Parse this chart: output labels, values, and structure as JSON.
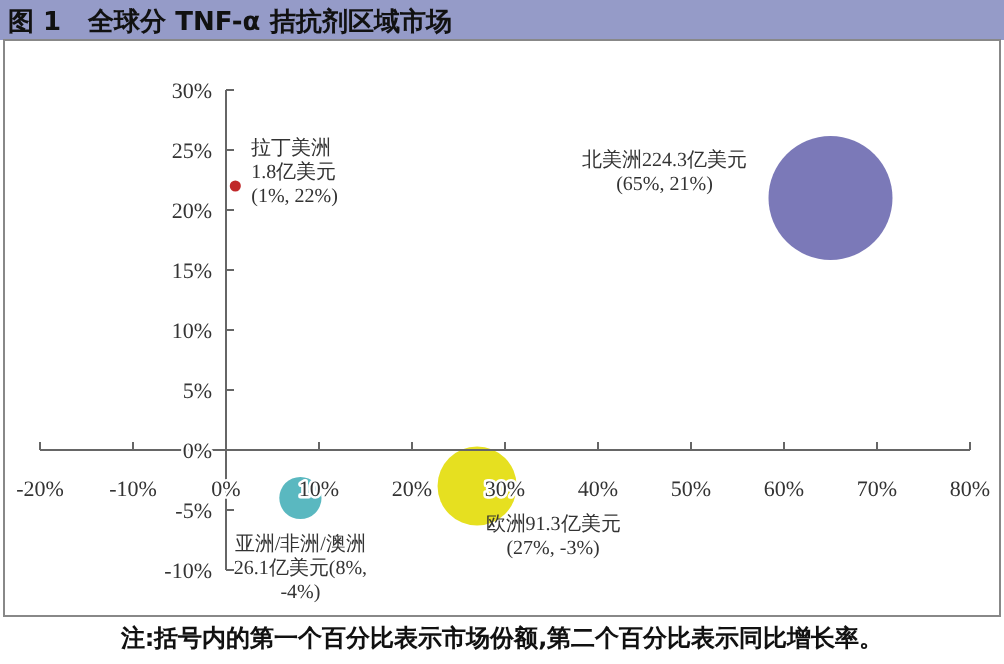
{
  "chart_data": {
    "type": "bubble",
    "title": "图 1   全球分 TNF-α 拮抗剂区域市场",
    "xlim": [
      -20,
      80
    ],
    "ylim": [
      -10,
      30
    ],
    "xticks": [
      {
        "value": -20,
        "label": "-20%"
      },
      {
        "value": -10,
        "label": "-10%"
      },
      {
        "value": 0,
        "label": "0%"
      },
      {
        "value": 10,
        "label": "10%"
      },
      {
        "value": 20,
        "label": "20%"
      },
      {
        "value": 30,
        "label": "30%"
      },
      {
        "value": 40,
        "label": "40%"
      },
      {
        "value": 50,
        "label": "50%"
      },
      {
        "value": 60,
        "label": "60%"
      },
      {
        "value": 70,
        "label": "70%"
      },
      {
        "value": 80,
        "label": "80%"
      }
    ],
    "yticks": [
      {
        "value": -10,
        "label": "-10%"
      },
      {
        "value": -5,
        "label": "-5%"
      },
      {
        "value": 0,
        "label": "0%"
      },
      {
        "value": 5,
        "label": "5%"
      },
      {
        "value": 10,
        "label": "10%"
      },
      {
        "value": 15,
        "label": "15%"
      },
      {
        "value": 20,
        "label": "20%"
      },
      {
        "value": 25,
        "label": "25%"
      },
      {
        "value": 30,
        "label": "30%"
      }
    ],
    "series": [
      {
        "x": [
          1,
          65,
          8,
          27
        ],
        "values": [
          22,
          21,
          -4,
          -3
        ],
        "sizes": [
          0.008,
          1,
          0.116,
          0.407
        ],
        "colors": [
          "#c0282a",
          "#7b79b8",
          "#5ab8c0",
          "#e6e020"
        ],
        "value_labels": [
          "拉丁美洲\n1.8亿美元\n(1%, 22%)",
          "北美洲224.3亿美元\n(65%, 21%)",
          "亚洲/非洲/澳洲\n26.1亿美元(8%,\n-4%)",
          "欧洲91.3亿美元\n(27%, -3%)"
        ]
      }
    ],
    "annotations": [
      "注:括号内的第一个百分比表示市场份额,第二个百分比表示同比增长率。"
    ]
  }
}
